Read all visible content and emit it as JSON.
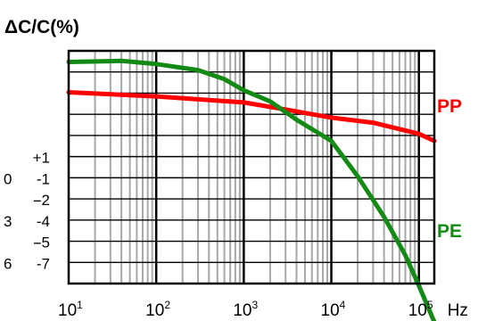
{
  "chart_data": {
    "type": "line",
    "title": "ΔC/C(%)",
    "xlabel": "",
    "ylabel": "ΔC/C(%)",
    "x_scale": "log",
    "xlim": [
      10,
      150000
    ],
    "x_unit": "Hz",
    "x_ticks": [
      {
        "value": 10,
        "base": "10",
        "exp": "1"
      },
      {
        "value": 100,
        "base": "10",
        "exp": "2"
      },
      {
        "value": 1000,
        "base": "10",
        "exp": "3"
      },
      {
        "value": 10000,
        "base": "10",
        "exp": "4"
      },
      {
        "value": 100000,
        "base": "10",
        "exp": "5"
      }
    ],
    "y_labels": [
      {
        "text": "+1",
        "y": 0
      },
      {
        "text": "0",
        "y": -1
      },
      {
        "text": "-1",
        "y": -1
      },
      {
        "text": "-2",
        "y": -2
      },
      {
        "text": "-",
        "y": -2
      },
      {
        "text": "3",
        "y": -3
      },
      {
        "text": "-4",
        "y": -3
      },
      {
        "text": "-5",
        "y": -4
      },
      {
        "text": "-",
        "y": -4
      },
      {
        "text": "6",
        "y": -5
      },
      {
        "text": "-7",
        "y": -5
      }
    ],
    "ylim": [
      -7,
      4.5
    ],
    "grid": true,
    "series": [
      {
        "name": "PP",
        "color": "#ff0000",
        "x": [
          10,
          100,
          1000,
          3000,
          10000,
          30000,
          100000,
          150000
        ],
        "y": [
          2.45,
          2.25,
          1.95,
          1.6,
          1.2,
          0.95,
          0.4,
          0.05
        ]
      },
      {
        "name": "PE",
        "color": "#138a13",
        "x": [
          10,
          40,
          100,
          300,
          600,
          1000,
          2000,
          4000,
          10000,
          20000,
          40000,
          70000,
          100000,
          150000
        ],
        "y": [
          3.95,
          4.0,
          3.85,
          3.55,
          3.1,
          2.55,
          2.0,
          1.1,
          0.05,
          -1.7,
          -3.7,
          -5.6,
          -7.1,
          -8.9
        ]
      }
    ]
  }
}
